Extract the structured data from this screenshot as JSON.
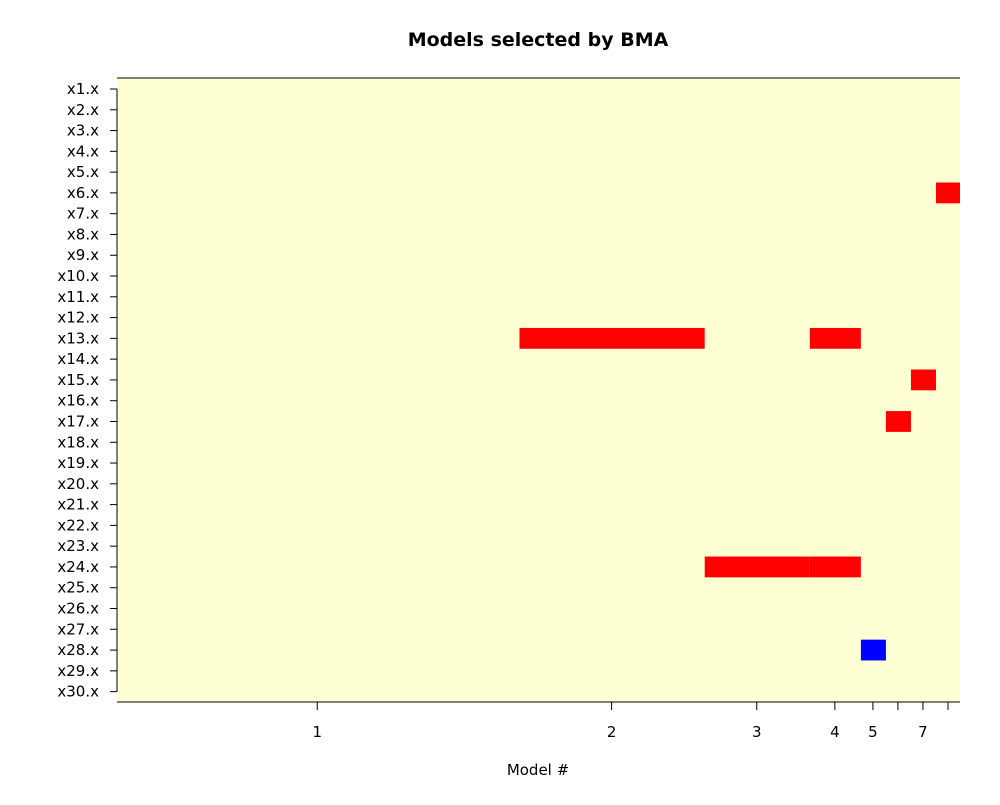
{
  "chart_data": {
    "type": "heatmap",
    "title": "Models selected by BMA",
    "xlabel": "Model #",
    "ylabel": "",
    "variables": [
      "x1.x",
      "x2.x",
      "x3.x",
      "x4.x",
      "x5.x",
      "x6.x",
      "x7.x",
      "x8.x",
      "x9.x",
      "x10.x",
      "x11.x",
      "x12.x",
      "x13.x",
      "x14.x",
      "x15.x",
      "x16.x",
      "x17.x",
      "x18.x",
      "x19.x",
      "x20.x",
      "x21.x",
      "x22.x",
      "x23.x",
      "x24.x",
      "x25.x",
      "x26.x",
      "x27.x",
      "x28.x",
      "x29.x",
      "x30.x"
    ],
    "x_tick_labels": [
      {
        "label": "1",
        "position": 0.0
      },
      {
        "label": "2",
        "position": 0.294
      },
      {
        "label": "3",
        "position": 0.439
      },
      {
        "label": "4",
        "position": 0.517
      },
      {
        "label": "5",
        "position": 0.555
      },
      {
        "label": "",
        "position": 0.58
      },
      {
        "label": "7",
        "position": 0.605
      },
      {
        "label": "",
        "position": 0.63
      }
    ],
    "x_range": [
      -0.2,
      0.642
    ],
    "models": [
      {
        "model": 1,
        "start": -0.2,
        "end": 0.202,
        "selected": []
      },
      {
        "model": 2,
        "start": 0.202,
        "end": 0.387,
        "selected": [
          {
            "variable": "x13.x",
            "sign": "positive"
          }
        ]
      },
      {
        "model": 3,
        "start": 0.387,
        "end": 0.492,
        "selected": [
          {
            "variable": "x24.x",
            "sign": "positive"
          }
        ]
      },
      {
        "model": 4,
        "start": 0.492,
        "end": 0.543,
        "selected": [
          {
            "variable": "x13.x",
            "sign": "positive"
          },
          {
            "variable": "x24.x",
            "sign": "positive"
          }
        ]
      },
      {
        "model": 5,
        "start": 0.543,
        "end": 0.568,
        "selected": [
          {
            "variable": "x28.x",
            "sign": "negative"
          }
        ]
      },
      {
        "model": 6,
        "start": 0.568,
        "end": 0.593,
        "selected": [
          {
            "variable": "x17.x",
            "sign": "positive"
          }
        ]
      },
      {
        "model": 7,
        "start": 0.593,
        "end": 0.618,
        "selected": [
          {
            "variable": "x15.x",
            "sign": "positive"
          }
        ]
      },
      {
        "model": 8,
        "start": 0.618,
        "end": 0.642,
        "selected": [
          {
            "variable": "x6.x",
            "sign": "positive"
          }
        ]
      }
    ],
    "legend": "none",
    "grid": false,
    "colors": {
      "background": "#ffffd4",
      "positive": "#ff0000",
      "negative": "#0000ff",
      "axis": "#000000"
    }
  }
}
